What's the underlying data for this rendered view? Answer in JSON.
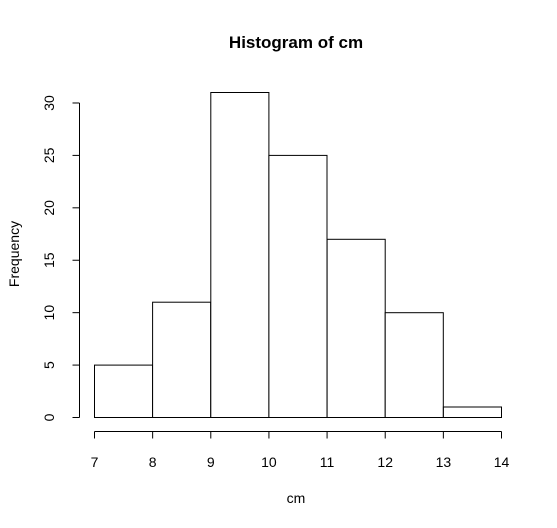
{
  "chart_data": {
    "type": "bar",
    "title": "Histogram of cm",
    "xlabel": "cm",
    "ylabel": "Frequency",
    "bins": [
      {
        "start": 7,
        "end": 8,
        "count": 5
      },
      {
        "start": 8,
        "end": 9,
        "count": 11
      },
      {
        "start": 9,
        "end": 10,
        "count": 31
      },
      {
        "start": 10,
        "end": 11,
        "count": 25
      },
      {
        "start": 11,
        "end": 12,
        "count": 17
      },
      {
        "start": 12,
        "end": 13,
        "count": 10
      },
      {
        "start": 13,
        "end": 14,
        "count": 1
      }
    ],
    "xticks": [
      7,
      8,
      9,
      10,
      11,
      12,
      13,
      14
    ],
    "yticks": [
      0,
      5,
      10,
      15,
      20,
      25,
      30
    ],
    "xlim": [
      7,
      14
    ],
    "ylim": [
      0,
      31
    ],
    "grid": false
  }
}
